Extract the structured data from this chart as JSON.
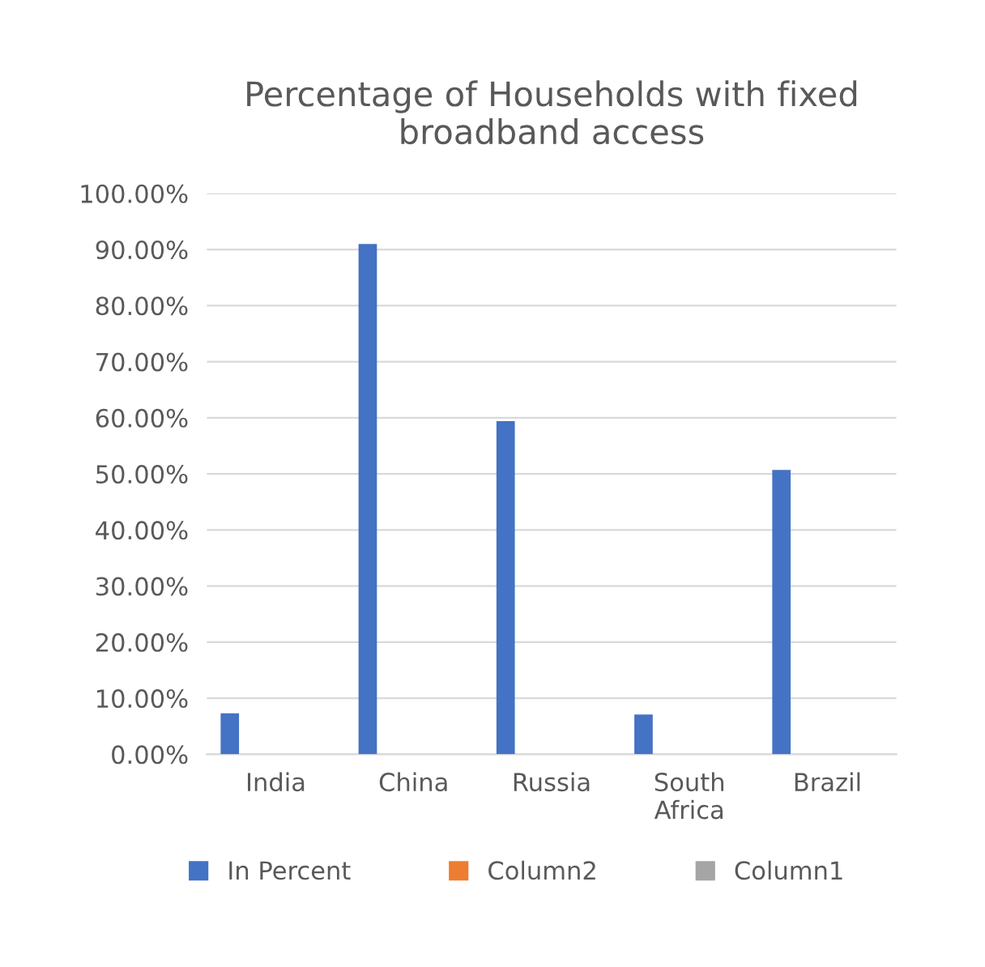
{
  "chart_data": {
    "type": "bar",
    "title": "Percentage of Households with fixed\nbroadband access",
    "categories": [
      "India",
      "China",
      "Russia",
      "South\nAfrica",
      "Brazil"
    ],
    "series": [
      {
        "name": "In Percent",
        "color": "#4472c4",
        "values": [
          7.3,
          91.0,
          59.4,
          7.1,
          50.7
        ]
      },
      {
        "name": "Column2",
        "color": "#ed7d31",
        "values": [
          null,
          null,
          null,
          null,
          null
        ]
      },
      {
        "name": "Column1",
        "color": "#a5a5a5",
        "values": [
          null,
          null,
          null,
          null,
          null
        ]
      }
    ],
    "ylim": [
      0,
      100
    ],
    "yticks": [
      {
        "value": 0,
        "label": "0.00%"
      },
      {
        "value": 10,
        "label": "10.00%"
      },
      {
        "value": 20,
        "label": "20.00%"
      },
      {
        "value": 30,
        "label": "30.00%"
      },
      {
        "value": 40,
        "label": "40.00%"
      },
      {
        "value": 50,
        "label": "50.00%"
      },
      {
        "value": 60,
        "label": "60.00%"
      },
      {
        "value": 70,
        "label": "70.00%"
      },
      {
        "value": 80,
        "label": "80.00%"
      },
      {
        "value": 90,
        "label": "90.00%"
      },
      {
        "value": 100,
        "label": "100.00%"
      }
    ],
    "grid": "y",
    "legend": "bottom"
  }
}
